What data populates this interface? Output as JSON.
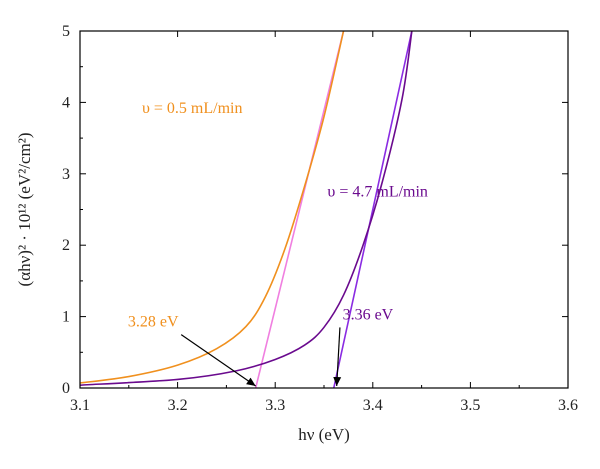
{
  "chart_data": {
    "type": "line",
    "xlabel": "hν (eV)",
    "ylabel": "(αhν)² · 10¹² (eV²/cm²)",
    "xlim": [
      3.1,
      3.6
    ],
    "ylim": [
      0,
      5
    ],
    "x_ticks": [
      "3.1",
      "3.2",
      "3.3",
      "3.4",
      "3.5",
      "3.6"
    ],
    "y_ticks": [
      "0",
      "1",
      "2",
      "3",
      "4",
      "5"
    ],
    "grid": false,
    "colors": {
      "series1": "#F0901E",
      "series1_fit": "#F07FE0",
      "series2": "#6A0A8E",
      "series2_fit": "#8A2BE2",
      "axis": "#000000"
    },
    "series": [
      {
        "label": "υ = 0.5 mL/min",
        "color": "#F0901E",
        "x": [
          3.1,
          3.15,
          3.2,
          3.24,
          3.27,
          3.29,
          3.31,
          3.33,
          3.35,
          3.37
        ],
        "y": [
          0.07,
          0.16,
          0.32,
          0.55,
          0.86,
          1.28,
          1.95,
          2.82,
          3.8,
          5.0
        ]
      },
      {
        "label": "υ = 4.7 mL/min",
        "color": "#6A0A8E",
        "x": [
          3.1,
          3.2,
          3.26,
          3.3,
          3.33,
          3.35,
          3.37,
          3.39,
          3.41,
          3.43,
          3.44
        ],
        "y": [
          0.04,
          0.12,
          0.24,
          0.4,
          0.6,
          0.85,
          1.3,
          2.0,
          2.9,
          4.05,
          5.0
        ]
      }
    ],
    "fits": [
      {
        "color": "#F07FE0",
        "x": [
          3.28,
          3.37
        ],
        "y": [
          0,
          5
        ]
      },
      {
        "color": "#8A2BE2",
        "x": [
          3.36,
          3.44
        ],
        "y": [
          0,
          5
        ]
      }
    ],
    "annotations": [
      {
        "text": "3.28 eV",
        "color": "#F0901E",
        "tx": 3.175,
        "ty": 0.86,
        "ax": 3.28,
        "ay": 0.0
      },
      {
        "text": "3.36 eV",
        "color": "#6A0A8E",
        "tx": 3.395,
        "ty": 0.96,
        "ax": 3.363,
        "ay": 0.0
      },
      {
        "text": "υ = 0.5 mL/min",
        "color": "#F0901E",
        "tx": 3.215,
        "ty": 3.85
      },
      {
        "text": "υ = 4.7 mL/min",
        "color": "#6A0A8E",
        "tx": 3.405,
        "ty": 2.68
      }
    ]
  }
}
